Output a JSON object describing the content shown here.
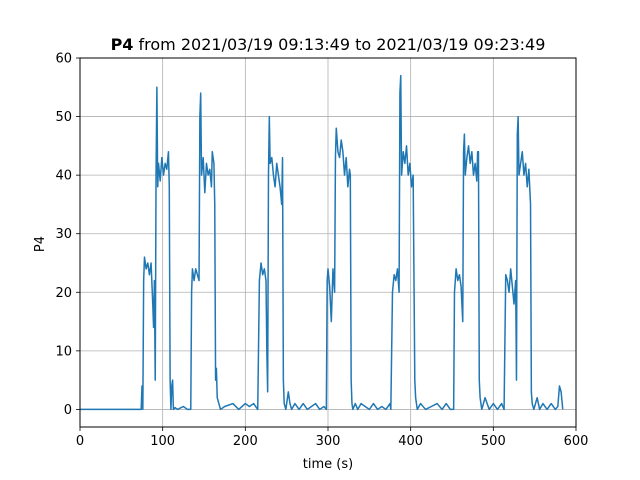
{
  "chart_data": {
    "type": "line",
    "title_bold": "P4",
    "title_rest": " from 2021/03/19 09:13:49 to 2021/03/19 09:23:49",
    "xlabel": "time (s)",
    "ylabel": "P4",
    "xlim": [
      0,
      600
    ],
    "ylim": [
      -3,
      60
    ],
    "xticks": [
      0,
      100,
      200,
      300,
      400,
      500,
      600
    ],
    "yticks": [
      0,
      10,
      20,
      30,
      40,
      50,
      60
    ],
    "grid": true,
    "colors": {
      "line": "#1f77b4",
      "grid": "#b0b0b0",
      "axis": "#000000"
    },
    "series": [
      {
        "values": [
          [
            0,
            0
          ],
          [
            74,
            0
          ],
          [
            75,
            4
          ],
          [
            76,
            0
          ],
          [
            77,
            22
          ],
          [
            78,
            26
          ],
          [
            80,
            24
          ],
          [
            82,
            25
          ],
          [
            84,
            23
          ],
          [
            86,
            25
          ],
          [
            88,
            18
          ],
          [
            89,
            14
          ],
          [
            90,
            22
          ],
          [
            91,
            5
          ],
          [
            92,
            40
          ],
          [
            93,
            55
          ],
          [
            94,
            38
          ],
          [
            95,
            42
          ],
          [
            97,
            39
          ],
          [
            99,
            43
          ],
          [
            101,
            40
          ],
          [
            103,
            42
          ],
          [
            105,
            41
          ],
          [
            107,
            44
          ],
          [
            108,
            38
          ],
          [
            109,
            5
          ],
          [
            110,
            0
          ],
          [
            111,
            4
          ],
          [
            112,
            5
          ],
          [
            113,
            0
          ],
          [
            115,
            0.3
          ],
          [
            118,
            0
          ],
          [
            125,
            0.5
          ],
          [
            130,
            0
          ],
          [
            134,
            0
          ],
          [
            135,
            20
          ],
          [
            136,
            24
          ],
          [
            138,
            22
          ],
          [
            140,
            24
          ],
          [
            142,
            23
          ],
          [
            144,
            22
          ],
          [
            145,
            50
          ],
          [
            146,
            54
          ],
          [
            147,
            40
          ],
          [
            149,
            43
          ],
          [
            151,
            37
          ],
          [
            153,
            42
          ],
          [
            155,
            40
          ],
          [
            157,
            41
          ],
          [
            159,
            38
          ],
          [
            160,
            44
          ],
          [
            162,
            42
          ],
          [
            163,
            35
          ],
          [
            164,
            5
          ],
          [
            165,
            7
          ],
          [
            166,
            2
          ],
          [
            168,
            1
          ],
          [
            170,
            0
          ],
          [
            175,
            0.5
          ],
          [
            185,
            1
          ],
          [
            192,
            0
          ],
          [
            200,
            1
          ],
          [
            205,
            0.5
          ],
          [
            210,
            1
          ],
          [
            215,
            0
          ],
          [
            217,
            22
          ],
          [
            219,
            25
          ],
          [
            221,
            23
          ],
          [
            223,
            24
          ],
          [
            225,
            22
          ],
          [
            226,
            10
          ],
          [
            227,
            3
          ],
          [
            228,
            40
          ],
          [
            229,
            50
          ],
          [
            230,
            42
          ],
          [
            232,
            43
          ],
          [
            234,
            40
          ],
          [
            236,
            38
          ],
          [
            238,
            42
          ],
          [
            240,
            40
          ],
          [
            242,
            38
          ],
          [
            244,
            35
          ],
          [
            245,
            43
          ],
          [
            246,
            5
          ],
          [
            247,
            1
          ],
          [
            249,
            0
          ],
          [
            252,
            3
          ],
          [
            254,
            1
          ],
          [
            256,
            0
          ],
          [
            260,
            1
          ],
          [
            265,
            0
          ],
          [
            270,
            1
          ],
          [
            275,
            0
          ],
          [
            280,
            0.5
          ],
          [
            285,
            1
          ],
          [
            290,
            0
          ],
          [
            295,
            0.5
          ],
          [
            298,
            0
          ],
          [
            299,
            22
          ],
          [
            300,
            24
          ],
          [
            302,
            21
          ],
          [
            304,
            15
          ],
          [
            306,
            24
          ],
          [
            308,
            20
          ],
          [
            309,
            43
          ],
          [
            310,
            48
          ],
          [
            312,
            44
          ],
          [
            314,
            43
          ],
          [
            316,
            46
          ],
          [
            318,
            44
          ],
          [
            320,
            40
          ],
          [
            322,
            43
          ],
          [
            324,
            38
          ],
          [
            326,
            41
          ],
          [
            327,
            40
          ],
          [
            328,
            5
          ],
          [
            329,
            1
          ],
          [
            330,
            0
          ],
          [
            333,
            1
          ],
          [
            336,
            0
          ],
          [
            340,
            1
          ],
          [
            345,
            0.5
          ],
          [
            350,
            0
          ],
          [
            355,
            1
          ],
          [
            360,
            0
          ],
          [
            365,
            0.5
          ],
          [
            370,
            0
          ],
          [
            375,
            1
          ],
          [
            376,
            0
          ],
          [
            378,
            20
          ],
          [
            380,
            23
          ],
          [
            382,
            22
          ],
          [
            384,
            24
          ],
          [
            386,
            20
          ],
          [
            387,
            54
          ],
          [
            388,
            57
          ],
          [
            389,
            40
          ],
          [
            391,
            44
          ],
          [
            393,
            42
          ],
          [
            395,
            45
          ],
          [
            397,
            40
          ],
          [
            399,
            42
          ],
          [
            401,
            38
          ],
          [
            403,
            40
          ],
          [
            405,
            5
          ],
          [
            406,
            2
          ],
          [
            408,
            0
          ],
          [
            412,
            1
          ],
          [
            418,
            0
          ],
          [
            425,
            0.5
          ],
          [
            432,
            1
          ],
          [
            438,
            0
          ],
          [
            443,
            1
          ],
          [
            448,
            0
          ],
          [
            452,
            0
          ],
          [
            453,
            20
          ],
          [
            455,
            24
          ],
          [
            457,
            22
          ],
          [
            459,
            23
          ],
          [
            461,
            21
          ],
          [
            463,
            15
          ],
          [
            464,
            44
          ],
          [
            465,
            47
          ],
          [
            466,
            40
          ],
          [
            468,
            43
          ],
          [
            470,
            45
          ],
          [
            472,
            42
          ],
          [
            474,
            44
          ],
          [
            476,
            40
          ],
          [
            478,
            42
          ],
          [
            480,
            39
          ],
          [
            481,
            44
          ],
          [
            482,
            44
          ],
          [
            483,
            5
          ],
          [
            484,
            2
          ],
          [
            486,
            0
          ],
          [
            490,
            2
          ],
          [
            495,
            0
          ],
          [
            500,
            1
          ],
          [
            505,
            0
          ],
          [
            510,
            1
          ],
          [
            513,
            0
          ],
          [
            515,
            23
          ],
          [
            517,
            22
          ],
          [
            519,
            20
          ],
          [
            521,
            24
          ],
          [
            523,
            21
          ],
          [
            525,
            18
          ],
          [
            527,
            22
          ],
          [
            528,
            5
          ],
          [
            529,
            47
          ],
          [
            530,
            50
          ],
          [
            531,
            40
          ],
          [
            533,
            42
          ],
          [
            535,
            44
          ],
          [
            537,
            40
          ],
          [
            539,
            42
          ],
          [
            541,
            38
          ],
          [
            543,
            41
          ],
          [
            545,
            35
          ],
          [
            546,
            3
          ],
          [
            547,
            1
          ],
          [
            549,
            0
          ],
          [
            553,
            2
          ],
          [
            556,
            0
          ],
          [
            560,
            1
          ],
          [
            565,
            0
          ],
          [
            570,
            1
          ],
          [
            575,
            0
          ],
          [
            578,
            0.5
          ],
          [
            580,
            4
          ],
          [
            582,
            3
          ],
          [
            584,
            0
          ]
        ]
      }
    ]
  }
}
